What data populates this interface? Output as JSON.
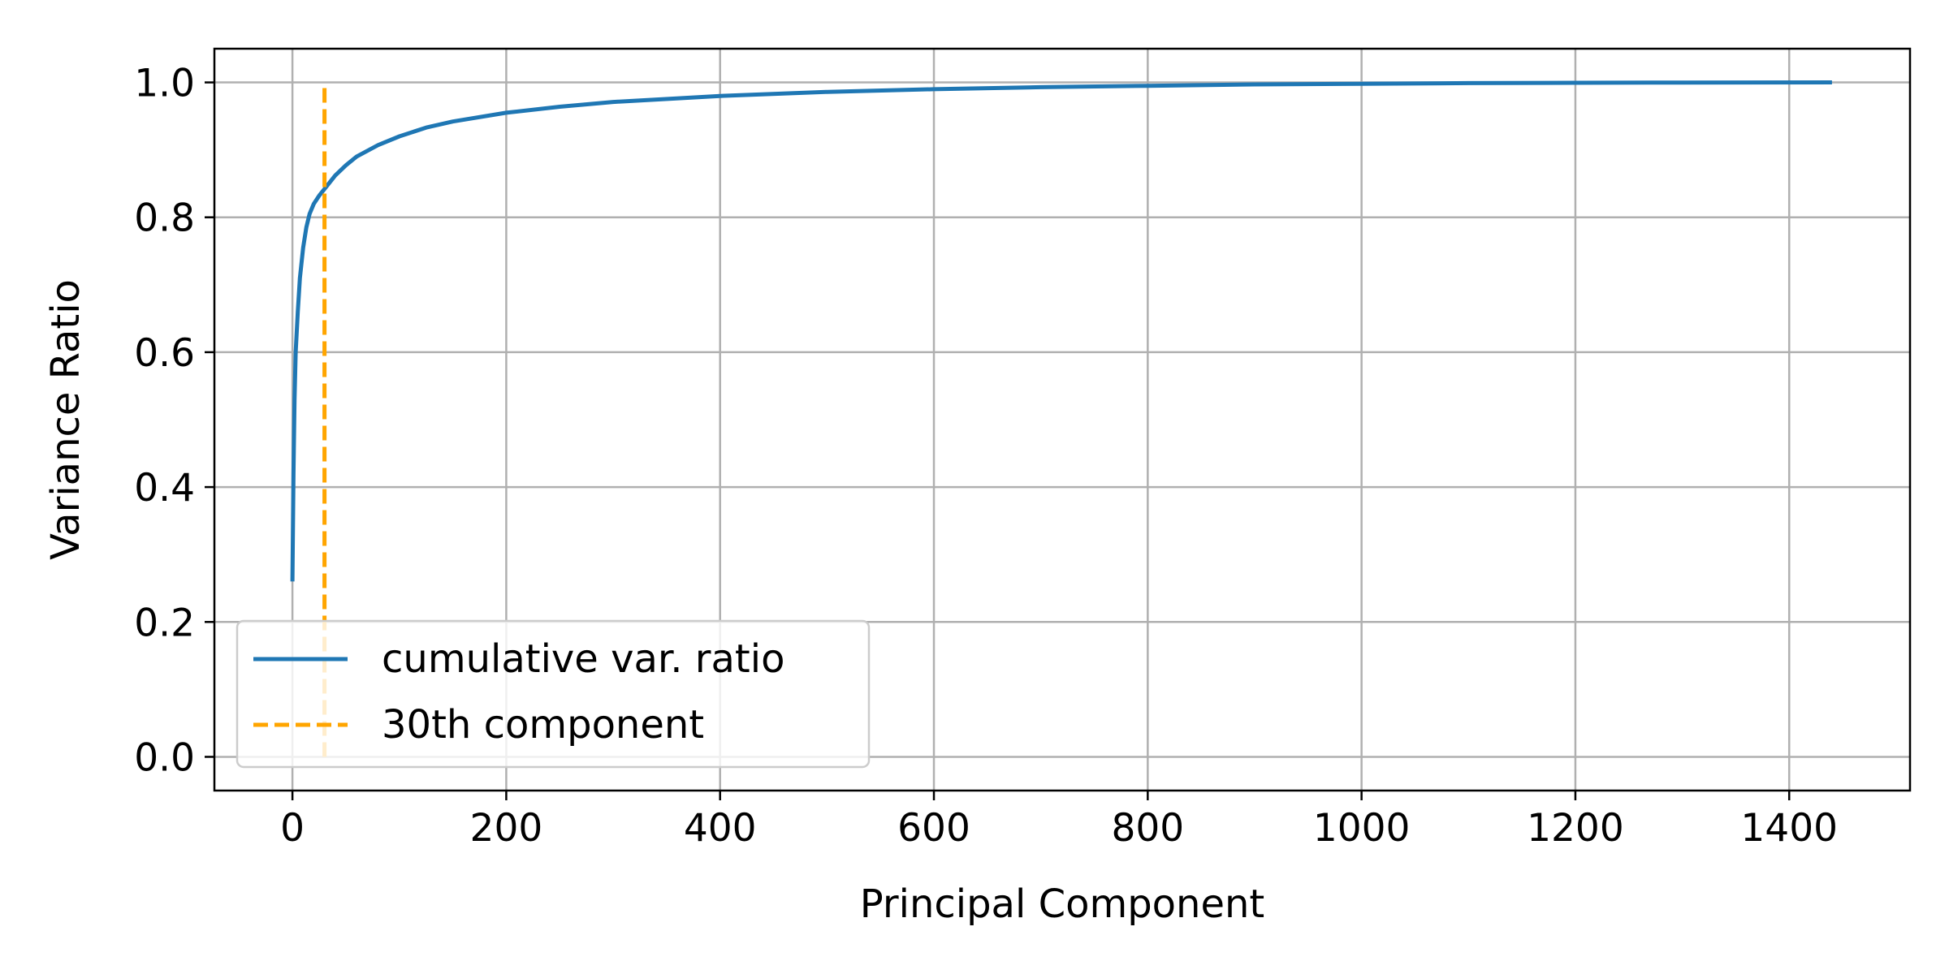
{
  "chart_data": {
    "type": "line",
    "title": "",
    "xlabel": "Principal Component",
    "ylabel": "Variance Ratio",
    "xlim": [
      -73,
      1513
    ],
    "ylim": [
      -0.05,
      1.05
    ],
    "xticks": [
      0,
      200,
      400,
      600,
      800,
      1000,
      1200,
      1400
    ],
    "xtick_labels": [
      "0",
      "200",
      "400",
      "600",
      "800",
      "1000",
      "1200",
      "1400"
    ],
    "yticks": [
      0.0,
      0.2,
      0.4,
      0.6,
      0.8,
      1.0
    ],
    "ytick_labels": [
      "0.0",
      "0.2",
      "0.4",
      "0.6",
      "0.8",
      "1.0"
    ],
    "grid": true,
    "legend_position": "lower-left",
    "series": [
      {
        "name": "cumulative var. ratio",
        "color": "#1f77b4",
        "style": "solid",
        "x": [
          0,
          1,
          2,
          3,
          5,
          7,
          10,
          13,
          16,
          20,
          25,
          30,
          40,
          50,
          60,
          80,
          100,
          125,
          150,
          200,
          250,
          300,
          400,
          500,
          600,
          700,
          800,
          900,
          1000,
          1100,
          1200,
          1300,
          1440
        ],
        "y": [
          0.26,
          0.42,
          0.53,
          0.6,
          0.66,
          0.71,
          0.755,
          0.785,
          0.805,
          0.82,
          0.832,
          0.842,
          0.862,
          0.877,
          0.89,
          0.907,
          0.92,
          0.933,
          0.942,
          0.955,
          0.964,
          0.971,
          0.98,
          0.986,
          0.99,
          0.993,
          0.995,
          0.997,
          0.998,
          0.999,
          0.9995,
          0.9998,
          1.0
        ]
      },
      {
        "name": "30th component",
        "color": "#ffa500",
        "style": "dashed",
        "x": [
          30,
          30
        ],
        "y": [
          0.0,
          1.0
        ]
      }
    ]
  }
}
